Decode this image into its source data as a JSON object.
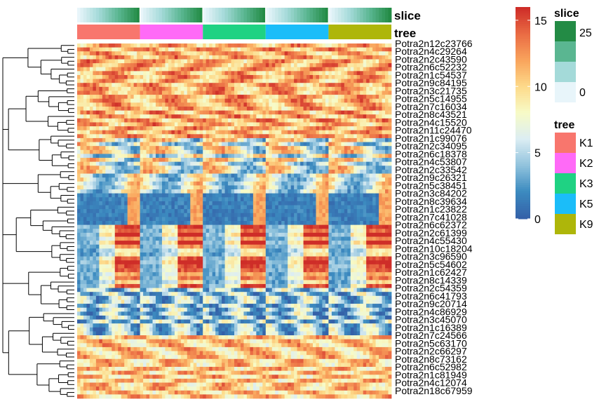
{
  "chart_data": {
    "type": "heatmap",
    "title": "",
    "row_label_prefix": "Potra2n",
    "annotations": [
      {
        "name": "slice",
        "kind": "gradient",
        "colors": [
          "#E8F5FA",
          "#A4DAD9",
          "#5AB691",
          "#238B45"
        ]
      },
      {
        "name": "tree",
        "kind": "categorical",
        "levels": [
          "K1",
          "K2",
          "K3",
          "K5",
          "K9"
        ],
        "colors": [
          "#F8766D",
          "#FF6AF7",
          "#1FD283",
          "#1BBDF9",
          "#AEB60A"
        ]
      }
    ],
    "column_groups": [
      "K1",
      "K2",
      "K3",
      "K5",
      "K9"
    ],
    "columns_per_group": 20,
    "row_count": 90,
    "row_labels": [
      "Potra2n12c23766",
      "Potra2n4c29264",
      "Potra2n2c43590",
      "Potra2n6c52232",
      "Potra2n1c54537",
      "Potra2n9c84195",
      "Potra2n3c21735",
      "Potra2n5c14955",
      "Potra2n7c16034",
      "Potra2n8c43521",
      "Potra2n4c15520",
      "Potra2n11c24470",
      "Potra2n1c99076",
      "Potra2n2c34095",
      "Potra2n6c18378",
      "Potra2n4c53807",
      "Potra2n2c33542",
      "Potra2n9c26321",
      "Potra2n5c38451",
      "Potra2n3c84202",
      "Potra2n8c39634",
      "Potra2n1c23822",
      "Potra2n7c41028",
      "Potra2n6c62372",
      "Potra2n2c61399",
      "Potra2n4c55430",
      "Potra2n10c18204",
      "Potra2n3c96590",
      "Potra2n5c54602",
      "Potra2n1c62427",
      "Potra2n8c14339",
      "Potra2n2c54359",
      "Potra2n6c41793",
      "Potra2n9c20714",
      "Potra2n4c86929",
      "Potra2n3c45070",
      "Potra2n1c16389",
      "Potra2n7c24566",
      "Potra2n5c63170",
      "Potra2n2c66297",
      "Potra2n8c73162",
      "Potra2n6c52982",
      "Potra2n1c81949",
      "Potra2n4c12074",
      "Potra2n18c67959"
    ],
    "value_range": [
      0,
      16
    ],
    "legend": {
      "slice": {
        "title": "slice",
        "labels": [
          "25",
          "0"
        ]
      },
      "tree": {
        "title": "tree",
        "labels": [
          "K1",
          "K2",
          "K3",
          "K5",
          "K9"
        ]
      },
      "colorbar": {
        "labels": [
          "15",
          "10",
          "5",
          "0"
        ],
        "values": [
          15,
          10,
          5,
          0
        ]
      }
    },
    "palette": [
      "#3461A8",
      "#3C8BC0",
      "#91C3DD",
      "#DCEDF3",
      "#F7FBC7",
      "#FDDA8A",
      "#F9A45C",
      "#EA6C44",
      "#CE2D28"
    ]
  }
}
